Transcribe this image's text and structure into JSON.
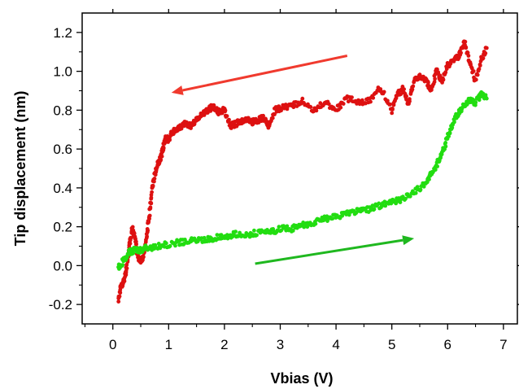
{
  "chart_data": {
    "type": "scatter",
    "title": "",
    "xlabel": "Vbias (V)",
    "ylabel": "Tip displacement (nm)",
    "xlim": [
      -0.55,
      7.25
    ],
    "ylim": [
      -0.3,
      1.3
    ],
    "x_ticks": [
      0,
      1,
      2,
      3,
      4,
      5,
      6,
      7
    ],
    "x_tick_labels": [
      "0",
      "1",
      "2",
      "3",
      "4",
      "5",
      "6",
      "7"
    ],
    "y_ticks": [
      -0.2,
      0.0,
      0.2,
      0.4,
      0.6,
      0.8,
      1.0,
      1.2
    ],
    "y_tick_labels": [
      "-0.2",
      "0.0",
      "0.2",
      "0.4",
      "0.6",
      "0.8",
      "1.0",
      "1.2"
    ],
    "grid": false,
    "legend": "none",
    "series": [
      {
        "color": "#dd1111",
        "direction": "decreasing",
        "x": [
          0.1,
          0.15,
          0.2,
          0.25,
          0.3,
          0.35,
          0.4,
          0.45,
          0.5,
          0.55,
          0.6,
          0.65,
          0.7,
          0.75,
          0.8,
          0.85,
          0.9,
          0.95,
          1.0,
          1.1,
          1.2,
          1.3,
          1.4,
          1.5,
          1.6,
          1.7,
          1.8,
          1.9,
          2.0,
          2.1,
          2.2,
          2.3,
          2.4,
          2.5,
          2.6,
          2.7,
          2.8,
          2.9,
          3.0,
          3.2,
          3.4,
          3.6,
          3.8,
          4.0,
          4.2,
          4.4,
          4.6,
          4.8,
          5.0,
          5.1,
          5.2,
          5.3,
          5.4,
          5.5,
          5.6,
          5.7,
          5.8,
          5.9,
          6.0,
          6.1,
          6.2,
          6.3,
          6.4,
          6.5,
          6.6,
          6.7
        ],
        "y": [
          -0.18,
          -0.1,
          -0.08,
          0.0,
          0.12,
          0.19,
          0.14,
          0.05,
          0.02,
          0.05,
          0.14,
          0.25,
          0.38,
          0.47,
          0.52,
          0.55,
          0.6,
          0.66,
          0.65,
          0.7,
          0.71,
          0.73,
          0.72,
          0.75,
          0.78,
          0.8,
          0.82,
          0.79,
          0.8,
          0.72,
          0.73,
          0.74,
          0.75,
          0.74,
          0.75,
          0.76,
          0.72,
          0.8,
          0.81,
          0.82,
          0.85,
          0.8,
          0.84,
          0.8,
          0.86,
          0.84,
          0.85,
          0.92,
          0.8,
          0.88,
          0.91,
          0.83,
          0.95,
          0.98,
          0.96,
          0.9,
          1.0,
          0.95,
          1.03,
          1.05,
          1.08,
          1.15,
          1.04,
          0.95,
          1.06,
          1.12
        ]
      },
      {
        "color": "#22dd11",
        "direction": "increasing",
        "x": [
          0.1,
          0.2,
          0.3,
          0.4,
          0.5,
          0.6,
          0.8,
          1.0,
          1.2,
          1.4,
          1.6,
          1.8,
          2.0,
          2.2,
          2.4,
          2.6,
          2.8,
          3.0,
          3.2,
          3.4,
          3.6,
          3.8,
          4.0,
          4.2,
          4.4,
          4.6,
          4.8,
          5.0,
          5.2,
          5.4,
          5.6,
          5.7,
          5.8,
          5.9,
          6.0,
          6.1,
          6.2,
          6.3,
          6.4,
          6.5,
          6.6,
          6.7
        ],
        "y": [
          -0.01,
          0.03,
          0.07,
          0.08,
          0.08,
          0.09,
          0.1,
          0.11,
          0.12,
          0.13,
          0.13,
          0.14,
          0.15,
          0.16,
          0.16,
          0.17,
          0.17,
          0.19,
          0.19,
          0.21,
          0.22,
          0.24,
          0.25,
          0.27,
          0.28,
          0.29,
          0.31,
          0.33,
          0.34,
          0.38,
          0.42,
          0.47,
          0.52,
          0.58,
          0.66,
          0.74,
          0.79,
          0.83,
          0.85,
          0.84,
          0.88,
          0.86
        ]
      }
    ],
    "annotations": [
      {
        "type": "arrow",
        "color": "#f03a2e",
        "from": [
          4.2,
          1.08
        ],
        "to": [
          1.05,
          0.89
        ]
      },
      {
        "type": "arrow",
        "color": "#1fb81f",
        "from": [
          2.55,
          0.01
        ],
        "to": [
          5.4,
          0.14
        ]
      }
    ]
  }
}
